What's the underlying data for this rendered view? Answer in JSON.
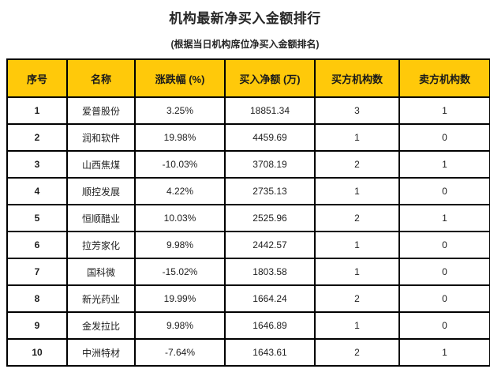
{
  "page": {
    "title": "机构最新净买入金额排行",
    "subtitle": "(根据当日机构席位净买入金额排名)"
  },
  "colors": {
    "header_bg": "#FFC90A",
    "border": "#000000",
    "text": "#1E1E1E",
    "background": "#FFFFFF"
  },
  "table": {
    "columns": [
      "序号",
      "名称",
      "涨跌幅 (%)",
      "买入净额 (万)",
      "买方机构数",
      "卖方机构数"
    ],
    "rows": [
      [
        "1",
        "爱普股份",
        "3.25%",
        "18851.34",
        "3",
        "1"
      ],
      [
        "2",
        "润和软件",
        "19.98%",
        "4459.69",
        "1",
        "0"
      ],
      [
        "3",
        "山西焦煤",
        "-10.03%",
        "3708.19",
        "2",
        "1"
      ],
      [
        "4",
        "顺控发展",
        "4.22%",
        "2735.13",
        "1",
        "0"
      ],
      [
        "5",
        "恒顺醋业",
        "10.03%",
        "2525.96",
        "2",
        "1"
      ],
      [
        "6",
        "拉芳家化",
        "9.98%",
        "2442.57",
        "1",
        "0"
      ],
      [
        "7",
        "国科微",
        "-15.02%",
        "1803.58",
        "1",
        "0"
      ],
      [
        "8",
        "新光药业",
        "19.99%",
        "1664.24",
        "2",
        "0"
      ],
      [
        "9",
        "金发拉比",
        "9.98%",
        "1646.89",
        "1",
        "0"
      ],
      [
        "10",
        "中洲特材",
        "-7.64%",
        "1643.61",
        "2",
        "1"
      ]
    ]
  }
}
